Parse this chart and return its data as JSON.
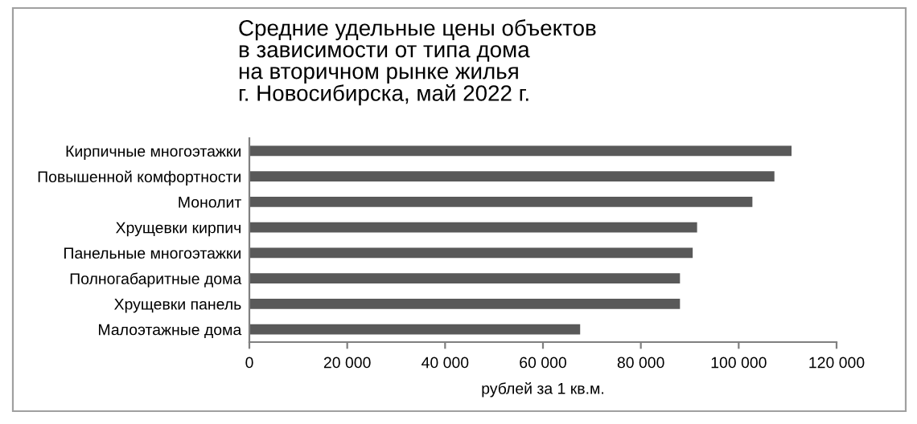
{
  "chart_data": {
    "type": "bar",
    "orientation": "horizontal",
    "title": "Средние удельные цены объектов\nв зависимости от типа дома\nна вторичном рынке жилья\nг. Новосибирска, май 2022 г.",
    "xlabel": "рублей за 1 кв.м.",
    "categories": [
      "Кирпичные многоэтажки",
      "Повышенной комфортности",
      "Монолит",
      "Хрущевки кирпич",
      "Панельные многоэтажки",
      "Полногабаритные дома",
      "Хрущевки панель",
      "Малоэтажные дома"
    ],
    "values": [
      110800,
      107300,
      102800,
      91500,
      90600,
      88000,
      88000,
      67600
    ],
    "color": "#595959",
    "xlim": [
      0,
      120000
    ],
    "xticks": [
      {
        "value": 0,
        "label": "0"
      },
      {
        "value": 20000,
        "label": "20 000"
      },
      {
        "value": 40000,
        "label": "40 000"
      },
      {
        "value": 60000,
        "label": "60 000"
      },
      {
        "value": 80000,
        "label": "80 000"
      },
      {
        "value": 100000,
        "label": "100 000"
      },
      {
        "value": 120000,
        "label": "120 000"
      }
    ],
    "grid": false,
    "legend": false
  }
}
